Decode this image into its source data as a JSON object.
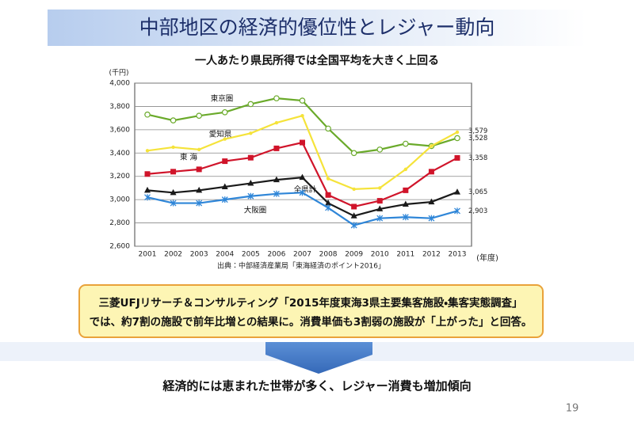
{
  "header": {
    "title": "中部地区の経済的優位性とレジャー動向"
  },
  "chart_data": {
    "type": "line",
    "title": "一人あたり県民所得では全国平均を大きく上回る",
    "y_label": "(千円)",
    "x_label": "(年度)",
    "source": "出典：中部経済産業局「東海経済のポイント2016」",
    "categories": [
      "2001",
      "2002",
      "2003",
      "2004",
      "2005",
      "2006",
      "2007",
      "2008",
      "2009",
      "2010",
      "2011",
      "2012",
      "2013"
    ],
    "ylim": [
      2600,
      4000
    ],
    "yticks": [
      {
        "value": 2600,
        "label": "2,600"
      },
      {
        "value": 2800,
        "label": "2,800"
      },
      {
        "value": 3000,
        "label": "3,000"
      },
      {
        "value": 3200,
        "label": "3,200"
      },
      {
        "value": 3400,
        "label": "3,400"
      },
      {
        "value": 3600,
        "label": "3,600"
      },
      {
        "value": 3800,
        "label": "3,800"
      },
      {
        "value": 4000,
        "label": "4,000"
      }
    ],
    "grid": true,
    "series": [
      {
        "name": "東京圏",
        "color": "#6aaa2a",
        "marker": "circle-open",
        "values": [
          3730,
          3680,
          3720,
          3750,
          3820,
          3870,
          3850,
          3610,
          3400,
          3430,
          3480,
          3460,
          3528
        ],
        "value_labels": [
          null,
          null,
          null,
          null,
          null,
          null,
          null,
          null,
          null,
          null,
          null,
          null,
          "3,528"
        ]
      },
      {
        "name": "愛知県",
        "color": "#f5e33a",
        "marker": "dot",
        "values": [
          3420,
          3450,
          3430,
          3520,
          3570,
          3660,
          3720,
          3180,
          3090,
          3100,
          3260,
          3460,
          3579
        ],
        "value_labels": [
          null,
          null,
          null,
          null,
          null,
          null,
          null,
          null,
          null,
          null,
          null,
          null,
          "3,579"
        ]
      },
      {
        "name": "東 海",
        "color": "#d0142a",
        "marker": "square",
        "values": [
          3220,
          3240,
          3260,
          3330,
          3360,
          3440,
          3490,
          3040,
          2940,
          2990,
          3080,
          3240,
          3358
        ],
        "value_labels": [
          null,
          null,
          null,
          null,
          null,
          null,
          null,
          null,
          null,
          null,
          null,
          null,
          "3,358"
        ]
      },
      {
        "name": "全県計",
        "color": "#1a1a1a",
        "marker": "triangle",
        "values": [
          3080,
          3060,
          3080,
          3110,
          3140,
          3170,
          3190,
          2970,
          2860,
          2920,
          2960,
          2980,
          3065
        ],
        "value_labels": [
          null,
          null,
          null,
          null,
          null,
          null,
          null,
          null,
          null,
          null,
          null,
          null,
          "3,065"
        ]
      },
      {
        "name": "大阪圏",
        "color": "#2f86d8",
        "marker": "star",
        "values": [
          3020,
          2970,
          2970,
          3000,
          3030,
          3050,
          3060,
          2930,
          2780,
          2840,
          2850,
          2840,
          2903
        ],
        "value_labels": [
          null,
          null,
          null,
          null,
          null,
          null,
          null,
          null,
          null,
          null,
          null,
          null,
          "2,903"
        ]
      }
    ]
  },
  "callout": {
    "lines": [
      "三菱UFJリサーチ＆コンサルティング「2015年度東海3県主要集客施設・集客実態調査」",
      "では、約7割の施設で前年比増との結果に。消費単価も3割弱の施設が「上がった」と回答。"
    ]
  },
  "conclusion": "経済的には恵まれた世帯が多く、レジャー消費も増加傾向",
  "page_number": "19"
}
